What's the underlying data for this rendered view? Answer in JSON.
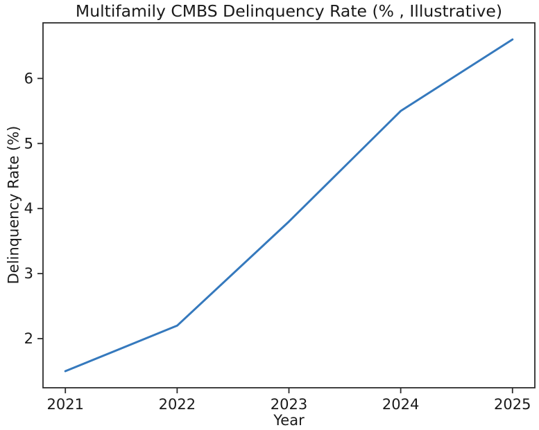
{
  "chart_data": {
    "type": "line",
    "title": "Multifamily CMBS Delinquency Rate (% , Illustrative)",
    "xlabel": "Year",
    "ylabel": "Delinquency Rate (%)",
    "x": [
      2021,
      2022,
      2023,
      2024,
      2025
    ],
    "values": [
      1.5,
      2.2,
      3.8,
      5.5,
      6.6
    ],
    "xticks": [
      "2021",
      "2022",
      "2023",
      "2024",
      "2025"
    ],
    "yticks": [
      "2",
      "3",
      "4",
      "5",
      "6"
    ],
    "xlim": [
      2020.8,
      2025.2
    ],
    "ylim": [
      1.245,
      6.855
    ],
    "grid": false,
    "legend": null,
    "line_color": "#3579bd",
    "axis_color": "#2b2b2b",
    "text_color": "#1a1a1a",
    "background": "#ffffff"
  }
}
